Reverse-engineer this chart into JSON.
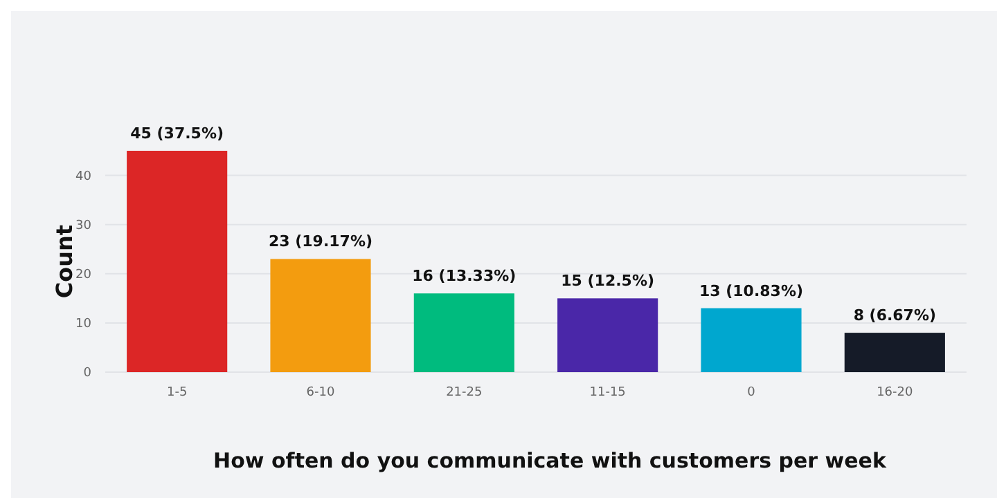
{
  "chart_data": {
    "type": "bar",
    "xlabel": "How often do you communicate with customers per week",
    "ylabel": "Count",
    "categories": [
      "1-5",
      "6-10",
      "21-25",
      "11-15",
      "0",
      "16-20"
    ],
    "values": [
      45,
      23,
      16,
      15,
      13,
      8
    ],
    "colors": [
      "#dc2626",
      "#f39c0f",
      "#00bb7e",
      "#4a27a8",
      "#00a7cf",
      "#151b28"
    ],
    "value_labels": [
      "45 (37.5%)",
      "23 (19.17%)",
      "16 (13.33%)",
      "15 (12.5%)",
      "13 (10.83%)",
      "8 (6.67%)"
    ],
    "ylim": [
      0,
      45
    ],
    "yticks": [
      0,
      10,
      20,
      30,
      40
    ],
    "grid": "y"
  }
}
